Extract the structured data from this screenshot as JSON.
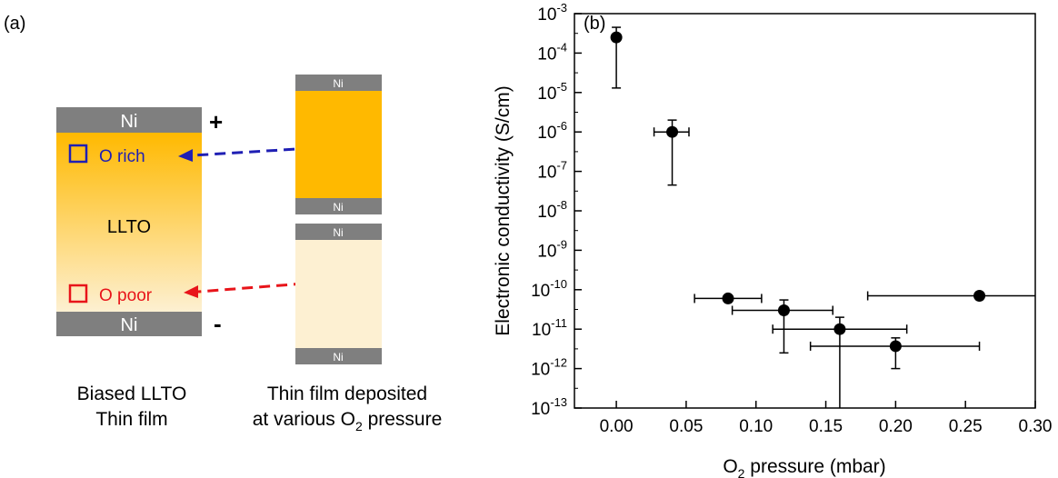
{
  "panel_a": {
    "label": "(a)",
    "electrode_label": "Ni",
    "plus_sign": "+",
    "minus_sign": "-",
    "o_rich_label": "O rich",
    "o_poor_label": "O poor",
    "center_label": "LLTO",
    "caption_left_line1": "Biased LLTO",
    "caption_left_line2": "Thin film",
    "caption_right_line1": "Thin film deposited",
    "caption_right_line2_prefix": "at various O",
    "caption_right_line2_sub": "2",
    "caption_right_line2_suffix": " pressure",
    "colors": {
      "electrode": "#7f7f7f",
      "film_o_rich": "#ffb900",
      "film_o_poor": "#fdf0d2",
      "o_rich_arrow": "#1f1fb4",
      "o_poor_arrow": "#e8141a"
    }
  },
  "panel_b": {
    "label": "(b)"
  },
  "chart_data": {
    "type": "scatter",
    "xlabel_prefix": "O",
    "xlabel_sub": "2",
    "xlabel_suffix": " pressure (mbar)",
    "ylabel": "Electronic conductivity (S/cm)",
    "xlim": [
      -0.03,
      0.3
    ],
    "ylim_log10": [
      -13,
      -3
    ],
    "y_scale": "log",
    "x_ticks": [
      {
        "value": 0.0,
        "label": "0.00"
      },
      {
        "value": 0.05,
        "label": "0.05"
      },
      {
        "value": 0.1,
        "label": "0.10"
      },
      {
        "value": 0.15,
        "label": "0.15"
      },
      {
        "value": 0.2,
        "label": "0.20"
      },
      {
        "value": 0.25,
        "label": "0.25"
      },
      {
        "value": 0.3,
        "label": "0.30"
      }
    ],
    "y_ticks": [
      {
        "exp": -3,
        "base": "10",
        "sup": "-3"
      },
      {
        "exp": -4,
        "base": "10",
        "sup": "-4"
      },
      {
        "exp": -5,
        "base": "10",
        "sup": "-5"
      },
      {
        "exp": -6,
        "base": "10",
        "sup": "-6"
      },
      {
        "exp": -7,
        "base": "10",
        "sup": "-7"
      },
      {
        "exp": -8,
        "base": "10",
        "sup": "-8"
      },
      {
        "exp": -9,
        "base": "10",
        "sup": "-9"
      },
      {
        "exp": -10,
        "base": "10",
        "sup": "-10"
      },
      {
        "exp": -11,
        "base": "10",
        "sup": "-11"
      },
      {
        "exp": -12,
        "base": "10",
        "sup": "-12"
      },
      {
        "exp": -13,
        "base": "10",
        "sup": "-13"
      }
    ],
    "points": [
      {
        "x": 0.0,
        "y": 0.00025,
        "x_low": 0.0,
        "x_high": 0.0,
        "y_low": 1.3e-05,
        "y_high": 0.00045
      },
      {
        "x": 0.04,
        "y": 1e-06,
        "x_low": 0.027,
        "x_high": 0.052,
        "y_low": 4.5e-08,
        "y_high": 2e-06
      },
      {
        "x": 0.08,
        "y": 6e-11,
        "x_low": 0.056,
        "x_high": 0.104,
        "y_low": 6e-11,
        "y_high": 6e-11
      },
      {
        "x": 0.12,
        "y": 3e-11,
        "x_low": 0.083,
        "x_high": 0.155,
        "y_low": 2.5e-12,
        "y_high": 5.5e-11
      },
      {
        "x": 0.16,
        "y": 1e-11,
        "x_low": 0.112,
        "x_high": 0.208,
        "y_low": 1e-13,
        "y_high": 2e-11
      },
      {
        "x": 0.2,
        "y": 3.7e-12,
        "x_low": 0.139,
        "x_high": 0.26,
        "y_low": 1e-12,
        "y_high": 6e-12
      },
      {
        "x": 0.26,
        "y": 7e-11,
        "x_low": 0.18,
        "x_high": 0.3,
        "y_low": 6e-11,
        "y_high": 8e-11
      }
    ],
    "marker_color": "#000000"
  }
}
